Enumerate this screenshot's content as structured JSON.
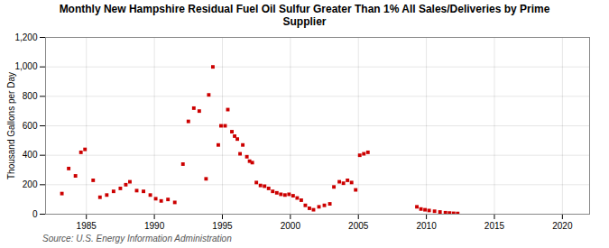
{
  "chart_data": {
    "type": "scatter",
    "title": "Monthly New Hampshire Residual Fuel Oil Sulfur Greater Than 1% All Sales/Deliveries by Prime\nSupplier",
    "ylabel": "Thousand Gallons per Day",
    "source": "Source: U.S. Energy Information Administration",
    "color": "#cc0000",
    "marker": "square",
    "grid": true,
    "xlim": [
      1982,
      2022
    ],
    "ylim": [
      0,
      1200
    ],
    "xticks": [
      1985,
      1990,
      1995,
      2000,
      2005,
      2010,
      2015,
      2020
    ],
    "yticks": [
      0,
      200,
      400,
      600,
      800,
      {
        "value": 1000,
        "label": "1,000"
      },
      {
        "value": 1200,
        "label": "1,200"
      }
    ],
    "x": [
      1983.2,
      1983.7,
      1984.2,
      1984.6,
      1984.9,
      1985.5,
      1986.0,
      1986.5,
      1987.0,
      1987.5,
      1987.9,
      1988.2,
      1988.7,
      1989.2,
      1989.7,
      1990.1,
      1990.5,
      1991.0,
      1991.5,
      1992.1,
      1992.5,
      1992.9,
      1993.3,
      1993.8,
      1994.0,
      1994.3,
      1994.7,
      1994.9,
      1995.2,
      1995.4,
      1995.7,
      1995.9,
      1996.1,
      1996.3,
      1996.5,
      1996.8,
      1997.0,
      1997.2,
      1997.5,
      1997.8,
      1998.1,
      1998.4,
      1998.7,
      1999.0,
      1999.3,
      1999.6,
      1999.9,
      2000.2,
      2000.5,
      2000.8,
      2001.1,
      2001.4,
      2001.7,
      2002.1,
      2002.5,
      2002.9,
      2003.2,
      2003.6,
      2003.9,
      2004.2,
      2004.5,
      2004.8,
      2005.1,
      2005.4,
      2005.7,
      2009.3,
      2009.6,
      2009.9,
      2010.2,
      2010.6,
      2011.0,
      2011.4,
      2011.7,
      2012.0,
      2012.3
    ],
    "values": [
      140,
      310,
      260,
      420,
      440,
      230,
      115,
      130,
      155,
      175,
      200,
      220,
      160,
      155,
      130,
      105,
      90,
      100,
      80,
      340,
      630,
      720,
      700,
      240,
      810,
      1000,
      470,
      600,
      600,
      710,
      560,
      530,
      510,
      410,
      470,
      390,
      360,
      350,
      215,
      195,
      190,
      175,
      155,
      145,
      135,
      130,
      135,
      125,
      110,
      95,
      60,
      40,
      30,
      50,
      60,
      70,
      185,
      220,
      210,
      230,
      215,
      165,
      400,
      410,
      420,
      50,
      35,
      30,
      25,
      20,
      15,
      10,
      8,
      6,
      5
    ]
  }
}
